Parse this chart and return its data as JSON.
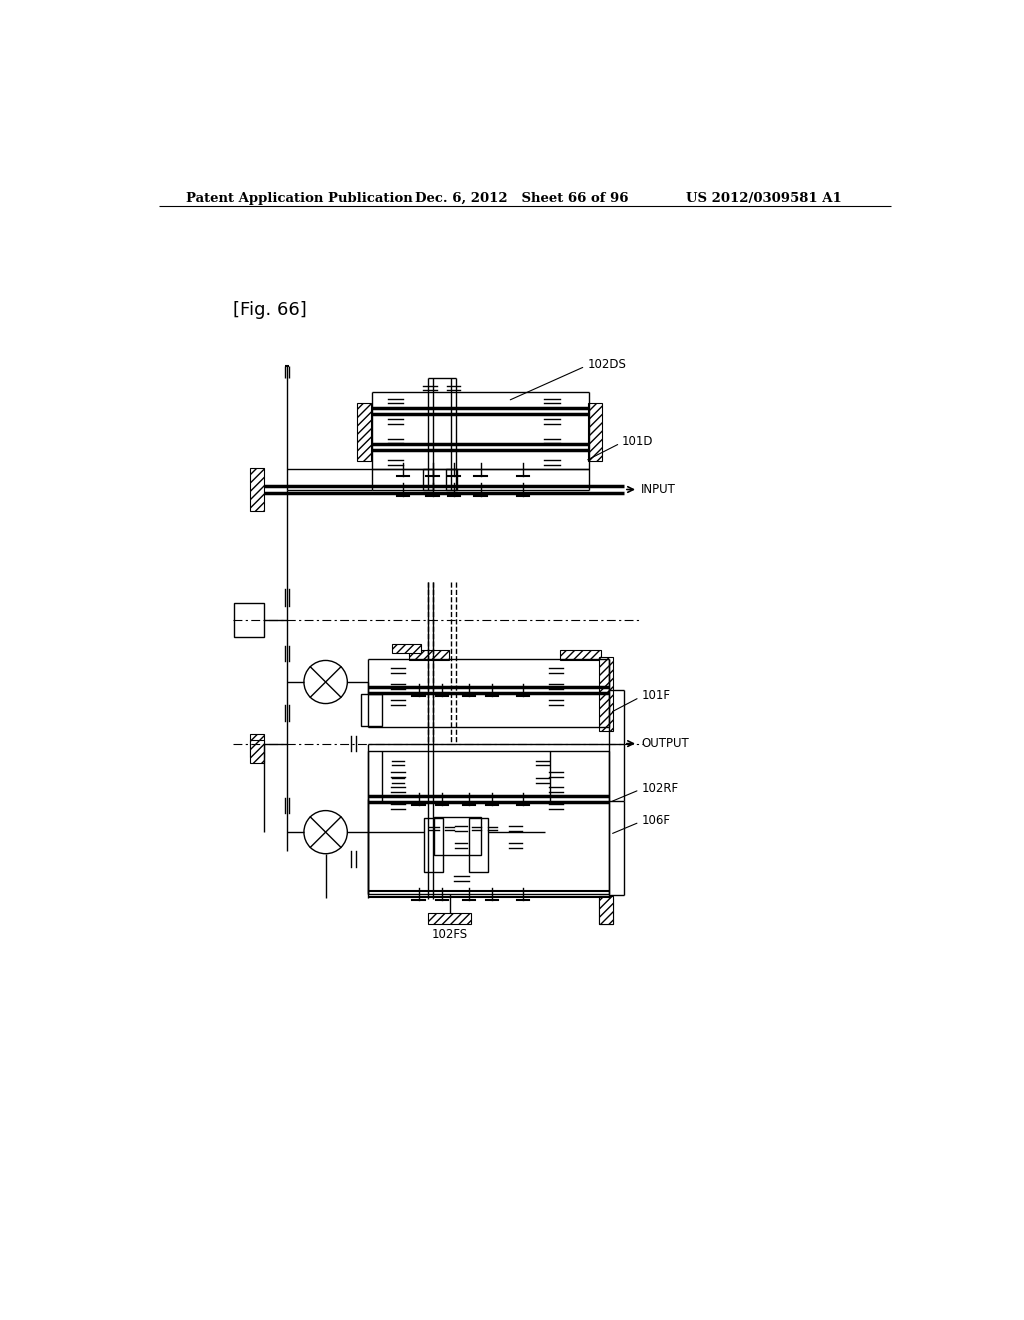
{
  "title_left": "Patent Application Publication",
  "title_mid": "Dec. 6, 2012   Sheet 66 of 96",
  "title_right": "US 2012/0309581 A1",
  "fig_label": "[Fig. 66]",
  "bg_color": "#ffffff"
}
